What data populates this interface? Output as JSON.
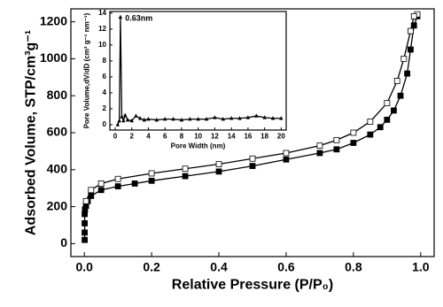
{
  "chart_data": [
    {
      "type": "line",
      "xlabel": "Relative Pressure (P/P₀)",
      "ylabel": "Adsorbed Volume, STP/cm³g⁻¹",
      "xlim": [
        -0.04,
        1.04
      ],
      "ylim": [
        -70,
        1270
      ],
      "xticks": [
        {
          "value": 0,
          "label": "0.0"
        },
        0.2,
        0.4,
        0.6,
        0.8,
        {
          "value": 1,
          "label": "1.0"
        }
      ],
      "yticks": [
        0,
        200,
        400,
        600,
        800,
        1000,
        1200
      ],
      "series": [
        {
          "marker": "filled",
          "color": "#000000",
          "x": [
            0.001,
            0.001,
            0.001,
            0.001,
            0.002,
            0.005,
            0.01,
            0.02,
            0.05,
            0.1,
            0.15,
            0.2,
            0.3,
            0.4,
            0.5,
            0.6,
            0.7,
            0.75,
            0.8,
            0.85,
            0.88,
            0.9,
            0.92,
            0.94,
            0.96,
            0.97,
            0.98,
            0.99
          ],
          "values": [
            20,
            60,
            110,
            160,
            185,
            205,
            230,
            258,
            290,
            310,
            325,
            340,
            365,
            390,
            420,
            455,
            490,
            510,
            545,
            590,
            630,
            670,
            720,
            800,
            920,
            1050,
            1180,
            1230
          ]
        },
        {
          "marker": "open",
          "color": "#000000",
          "x": [
            0.99,
            0.98,
            0.97,
            0.95,
            0.93,
            0.9,
            0.85,
            0.8,
            0.75,
            0.7,
            0.6,
            0.5,
            0.4,
            0.3,
            0.2,
            0.1,
            0.05,
            0.02,
            0.005
          ],
          "values": [
            1240,
            1230,
            1150,
            1000,
            880,
            760,
            660,
            600,
            560,
            530,
            490,
            460,
            430,
            405,
            380,
            350,
            325,
            290,
            230
          ]
        }
      ]
    },
    {
      "type": "line",
      "xlabel": "Pore Width (nm)",
      "ylabel": "Pore Volume,dV/dD (cm³ g⁻¹ nm⁻¹)",
      "annotation": "0.63nm",
      "xlim": [
        -0.64,
        20.6
      ],
      "ylim": [
        -0.67,
        14.2
      ],
      "xticks": [
        0,
        2,
        4,
        6,
        8,
        10,
        12,
        14,
        16,
        18,
        20
      ],
      "yticks": [
        0,
        2,
        4,
        6,
        8,
        10,
        12,
        14
      ],
      "series": [
        {
          "marker": "triangle",
          "color": "#000000",
          "x": [
            0.3,
            0.5,
            0.63,
            0.8,
            1,
            1.2,
            1.5,
            2,
            2.5,
            3,
            3.5,
            4,
            5,
            6,
            7,
            8,
            9,
            10,
            11,
            12,
            13,
            14,
            15,
            16,
            17,
            18,
            19,
            20
          ],
          "values": [
            0,
            0.5,
            13.5,
            1,
            0.5,
            1.2,
            0.6,
            0.5,
            1.1,
            0.8,
            0.6,
            0.7,
            0.6,
            0.7,
            0.7,
            0.6,
            0.7,
            0.7,
            0.7,
            0.9,
            0.7,
            0.8,
            0.8,
            0.9,
            1.1,
            0.9,
            0.8,
            0.8
          ]
        }
      ]
    }
  ]
}
